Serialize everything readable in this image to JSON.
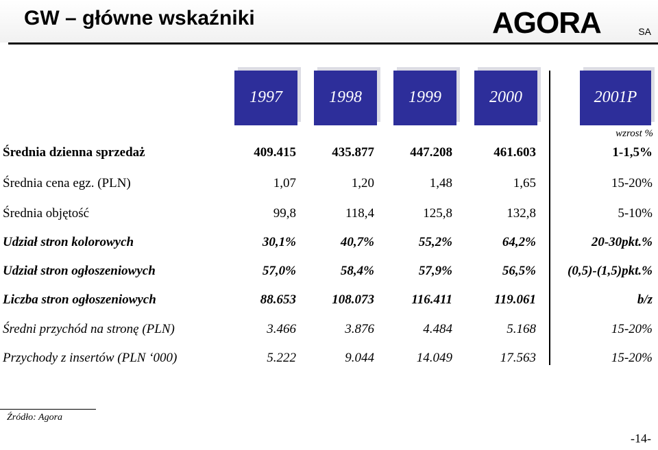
{
  "header": {
    "title": "GW – główne wskaźniki"
  },
  "logo": {
    "text": "AGORA",
    "suffix": "SA"
  },
  "columns": {
    "years": [
      "1997",
      "1998",
      "1999",
      "2000",
      "2001P"
    ],
    "growth_header": "wzrost %"
  },
  "rows": [
    {
      "label": "Średnia dzienna sprzedaż",
      "values": [
        "409.415",
        "435.877",
        "447.208",
        "461.603"
      ],
      "growth": "1-1,5%",
      "bold": true,
      "italic": false
    },
    {
      "label": "Średnia cena egz. (PLN)",
      "values": [
        "1,07",
        "1,20",
        "1,48",
        "1,65"
      ],
      "growth": "15-20%",
      "bold": false,
      "italic": false
    },
    {
      "label": "Średnia objętość",
      "values": [
        "99,8",
        "118,4",
        "125,8",
        "132,8"
      ],
      "growth": "5-10%",
      "bold": false,
      "italic": false
    },
    {
      "label": "Udział stron kolorowych",
      "values": [
        "30,1%",
        "40,7%",
        "55,2%",
        "64,2%"
      ],
      "growth": "20-30pkt.%",
      "bold": true,
      "italic": true
    },
    {
      "label": "Udział stron ogłoszeniowych",
      "values": [
        "57,0%",
        "58,4%",
        "57,9%",
        "56,5%"
      ],
      "growth": "(0,5)-(1,5)pkt.%",
      "bold": true,
      "italic": true
    },
    {
      "label": "Liczba stron ogłoszeniowych",
      "values": [
        "88.653",
        "108.073",
        "116.411",
        "119.061"
      ],
      "growth": "b/z",
      "bold": true,
      "italic": true
    },
    {
      "label": "Średni przychód na stronę (PLN)",
      "values": [
        "3.466",
        "3.876",
        "4.484",
        "5.168"
      ],
      "growth": "15-20%",
      "bold": false,
      "italic": true
    },
    {
      "label": "Przychody z insertów (PLN ‘000)",
      "values": [
        "5.222",
        "9.044",
        "14.049",
        "17.563"
      ],
      "growth": "15-20%",
      "bold": false,
      "italic": true
    }
  ],
  "footer": {
    "source": "Źródło: Agora",
    "page": "-14-"
  },
  "colors": {
    "header_box": "#2d2e9a",
    "box_shadow": "#dcdce4"
  }
}
